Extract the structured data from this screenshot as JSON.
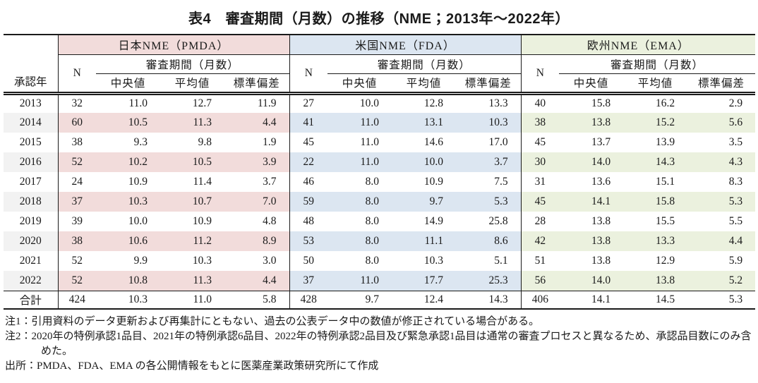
{
  "title": "表4　審査期間（月数）の推移（NME；2013年～2022年）",
  "colors": {
    "pmda_fill": "#f2dcdb",
    "fda_fill": "#dce6f1",
    "ema_fill": "#ebf1de",
    "year_fill": "#f2f2f2",
    "border": "#1a1a1a",
    "text": "#1a1a1a"
  },
  "table": {
    "year_header": "承認年",
    "n_header": "N",
    "period_header": "審査期間（月数）",
    "stat_headers": [
      "中央値",
      "平均値",
      "標準偏差"
    ],
    "groups": [
      {
        "id": "pmda",
        "label": "日本NME（PMDA）"
      },
      {
        "id": "fda",
        "label": "米国NME（FDA）"
      },
      {
        "id": "ema",
        "label": "欧州NME（EMA）"
      }
    ],
    "rows": [
      {
        "year": "2013",
        "shaded": false,
        "pmda": [
          "32",
          "11.0",
          "12.7",
          "11.9"
        ],
        "fda": [
          "27",
          "10.0",
          "12.8",
          "13.3"
        ],
        "ema": [
          "40",
          "15.8",
          "16.2",
          "2.9"
        ]
      },
      {
        "year": "2014",
        "shaded": true,
        "pmda": [
          "60",
          "10.5",
          "11.3",
          "4.4"
        ],
        "fda": [
          "41",
          "11.0",
          "13.1",
          "10.3"
        ],
        "ema": [
          "38",
          "13.8",
          "15.2",
          "5.6"
        ]
      },
      {
        "year": "2015",
        "shaded": false,
        "pmda": [
          "38",
          "9.3",
          "9.8",
          "1.9"
        ],
        "fda": [
          "45",
          "11.0",
          "14.6",
          "17.0"
        ],
        "ema": [
          "45",
          "13.7",
          "13.9",
          "3.5"
        ]
      },
      {
        "year": "2016",
        "shaded": true,
        "pmda": [
          "52",
          "10.2",
          "10.5",
          "3.9"
        ],
        "fda": [
          "22",
          "11.0",
          "10.0",
          "3.7"
        ],
        "ema": [
          "30",
          "14.0",
          "14.3",
          "4.3"
        ]
      },
      {
        "year": "2017",
        "shaded": false,
        "pmda": [
          "24",
          "10.9",
          "11.4",
          "3.7"
        ],
        "fda": [
          "46",
          "8.0",
          "10.9",
          "7.5"
        ],
        "ema": [
          "31",
          "13.6",
          "15.1",
          "8.3"
        ]
      },
      {
        "year": "2018",
        "shaded": true,
        "pmda": [
          "37",
          "10.3",
          "10.7",
          "7.0"
        ],
        "fda": [
          "59",
          "8.0",
          "9.7",
          "5.3"
        ],
        "ema": [
          "45",
          "14.1",
          "15.8",
          "5.3"
        ]
      },
      {
        "year": "2019",
        "shaded": false,
        "pmda": [
          "39",
          "10.0",
          "10.9",
          "4.8"
        ],
        "fda": [
          "48",
          "8.0",
          "14.9",
          "25.8"
        ],
        "ema": [
          "28",
          "13.8",
          "15.5",
          "5.5"
        ]
      },
      {
        "year": "2020",
        "shaded": true,
        "pmda": [
          "38",
          "10.6",
          "11.2",
          "8.9"
        ],
        "fda": [
          "53",
          "8.0",
          "11.1",
          "8.6"
        ],
        "ema": [
          "42",
          "13.8",
          "13.3",
          "4.4"
        ]
      },
      {
        "year": "2021",
        "shaded": false,
        "pmda": [
          "52",
          "9.9",
          "10.3",
          "3.0"
        ],
        "fda": [
          "50",
          "8.0",
          "10.3",
          "5.1"
        ],
        "ema": [
          "51",
          "13.8",
          "12.9",
          "5.9"
        ]
      },
      {
        "year": "2022",
        "shaded": true,
        "pmda": [
          "52",
          "10.8",
          "11.3",
          "4.4"
        ],
        "fda": [
          "37",
          "11.0",
          "17.7",
          "25.3"
        ],
        "ema": [
          "56",
          "14.0",
          "13.8",
          "5.2"
        ]
      },
      {
        "year": "合計",
        "shaded": false,
        "total": true,
        "pmda": [
          "424",
          "10.3",
          "11.0",
          "5.8"
        ],
        "fda": [
          "428",
          "9.7",
          "12.4",
          "14.3"
        ],
        "ema": [
          "406",
          "14.1",
          "14.5",
          "5.3"
        ]
      }
    ]
  },
  "notes": [
    {
      "label": "注1：",
      "text": "引用資料のデータ更新および再集計にともない、過去の公表データ中の数値が修正されている場合がある。"
    },
    {
      "label": "注2：",
      "text": "2020年の特例承認1品目、2021年の特例承認6品目、2022年の特例承認2品目及び緊急承認1品目は通常の審査プロセスと異なるため、承認品目数にのみ含めた。"
    },
    {
      "label": "出所：",
      "text": "PMDA、FDA、EMA の各公開情報をもとに医薬産業政策研究所にて作成"
    }
  ]
}
